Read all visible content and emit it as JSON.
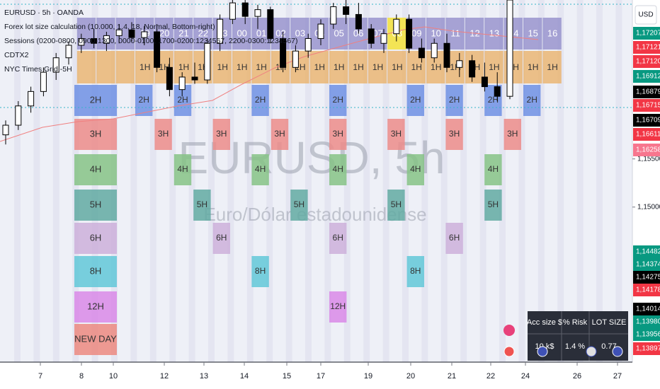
{
  "chart_data": {
    "type": "candlestick",
    "title": "EURUSD · 5h · OANDA",
    "candles": [
      [
        1.1575,
        1.159,
        1.1565,
        1.1585
      ],
      [
        1.1585,
        1.161,
        1.158,
        1.1605
      ],
      [
        1.1605,
        1.1625,
        1.1598,
        1.162
      ],
      [
        1.162,
        1.1645,
        1.1615,
        1.164
      ],
      [
        1.164,
        1.166,
        1.1632,
        1.1655
      ],
      [
        1.1655,
        1.1672,
        1.1648,
        1.1668
      ],
      [
        1.1668,
        1.168,
        1.166,
        1.1675
      ],
      [
        1.1675,
        1.1685,
        1.1665,
        1.167
      ],
      [
        1.167,
        1.1682,
        1.1662,
        1.1678
      ],
      [
        1.1678,
        1.169,
        1.167,
        1.1684
      ],
      [
        1.1684,
        1.1692,
        1.1672,
        1.1676
      ],
      [
        1.1676,
        1.1688,
        1.1668,
        1.1682
      ],
      [
        1.1682,
        1.169,
        1.164,
        1.1645
      ],
      [
        1.1645,
        1.1655,
        1.1615,
        1.1622
      ],
      [
        1.1622,
        1.164,
        1.1615,
        1.1635
      ],
      [
        1.1635,
        1.165,
        1.1628,
        1.1632
      ],
      [
        1.1632,
        1.1675,
        1.1628,
        1.167
      ],
      [
        1.167,
        1.17,
        1.1662,
        1.1695
      ],
      [
        1.1695,
        1.1722,
        1.169,
        1.1712
      ],
      [
        1.1712,
        1.1718,
        1.169,
        1.1698
      ],
      [
        1.1698,
        1.171,
        1.1685,
        1.1705
      ],
      [
        1.1705,
        1.1708,
        1.167,
        1.1675
      ],
      [
        1.1675,
        1.1682,
        1.164,
        1.1645
      ],
      [
        1.1645,
        1.1668,
        1.164,
        1.1662
      ],
      [
        1.1662,
        1.168,
        1.1655,
        1.1675
      ],
      [
        1.1675,
        1.1695,
        1.1668,
        1.169
      ],
      [
        1.169,
        1.1712,
        1.1685,
        1.1708
      ],
      [
        1.1708,
        1.1716,
        1.169,
        1.17
      ],
      [
        1.17,
        1.1712,
        1.168,
        1.1685
      ],
      [
        1.1685,
        1.169,
        1.1665,
        1.167
      ],
      [
        1.167,
        1.1685,
        1.166,
        1.168
      ],
      [
        1.168,
        1.17,
        1.1672,
        1.1695
      ],
      [
        1.1695,
        1.17,
        1.166,
        1.1665
      ],
      [
        1.1665,
        1.1675,
        1.165,
        1.1655
      ],
      [
        1.1655,
        1.1675,
        1.165,
        1.167
      ],
      [
        1.167,
        1.168,
        1.164,
        1.1645
      ],
      [
        1.1645,
        1.166,
        1.1635,
        1.1652
      ],
      [
        1.1652,
        1.1658,
        1.163,
        1.1635
      ],
      [
        1.1635,
        1.165,
        1.162,
        1.1625
      ],
      [
        1.1625,
        1.164,
        1.161,
        1.1615
      ],
      [
        1.1615,
        1.172,
        1.1612,
        1.1715
      ]
    ],
    "up_color": "#ffffff",
    "down_color": "#000000",
    "ylim": [
      1.1339,
      1.1715
    ],
    "yticks": [
      {
        "value": 1.155,
        "label": "1,15500"
      },
      {
        "value": 1.15,
        "label": "1,15000"
      }
    ],
    "time_labels": [
      "7",
      "8",
      "10",
      "12",
      "13",
      "14",
      "15",
      "17",
      "19",
      "20",
      "21",
      "22",
      "24",
      "26",
      "27"
    ],
    "currency": "USD"
  },
  "legend": [
    "Forex lot size calculation (10.000, 1.4, 18, Normal, Bottom-right)",
    "Sessions (0200-0800, 0900-1300, 0000-0100, 1700-0200:1234567, 2200-0300:1234567)",
    "CDTX2",
    "NYC Times Grid -5H"
  ],
  "watermark": {
    "symbol": "EURUSD, 5h",
    "name": "Euro/Dólar estadounidense"
  },
  "price_labels": [
    {
      "label": "1,17207",
      "color": "#089981"
    },
    {
      "label": "1,17121",
      "color": "#f23645"
    },
    {
      "label": "1,17120",
      "color": "#f23645"
    },
    {
      "label": "1,16912",
      "color": "#089981"
    },
    {
      "label": "1,16879",
      "color": "#000000"
    },
    {
      "label": "1,16715",
      "color": "#f23645"
    },
    {
      "label": "1,16709",
      "color": "#000000"
    },
    {
      "label": "1,16611",
      "color": "#f23645"
    },
    {
      "label": "1,16258",
      "color": "#f7768e"
    },
    {
      "label": "1,14482",
      "color": "#089981"
    },
    {
      "label": "1,14374",
      "color": "#089981"
    },
    {
      "label": "1,14275",
      "color": "#000000"
    },
    {
      "label": "1,14178",
      "color": "#f23645"
    },
    {
      "label": "1,14014",
      "color": "#000000"
    },
    {
      "label": "1,13980",
      "color": "#089981"
    },
    {
      "label": "1,13956",
      "color": "#089981"
    },
    {
      "label": "1,13897",
      "color": "#f23645"
    }
  ],
  "hour_grid": {
    "hours": [
      "19",
      "20",
      "21",
      "22",
      "23",
      "00",
      "01",
      "02",
      "03",
      "04",
      "05",
      "06",
      "07",
      "08",
      "09",
      "10",
      "11",
      "12",
      "13",
      "14",
      "15",
      "16"
    ],
    "hour_color": "#8e88c8",
    "highlight_color": "#f2e34c",
    "one_hour": "1H",
    "one_hour_color": "#eab36b",
    "rows": [
      {
        "label": "2H",
        "color": "#6f90e4"
      },
      {
        "label": "3H",
        "color": "#ec8c8a"
      },
      {
        "label": "4H",
        "color": "#86c386"
      },
      {
        "label": "5H",
        "color": "#62aaa2"
      },
      {
        "label": "6H",
        "color": "#cdb0da"
      },
      {
        "label": "8H",
        "color": "#62c8d8"
      },
      {
        "label": "12H",
        "color": "#d98ae8"
      },
      {
        "label": "NEW DAY",
        "color": "#ec8a80"
      }
    ]
  },
  "lot_table": {
    "headers": [
      "Acc size $",
      "% Risk",
      "LOT SIZE"
    ],
    "values": [
      "10 k$",
      "1.4 %",
      "0.77"
    ]
  }
}
